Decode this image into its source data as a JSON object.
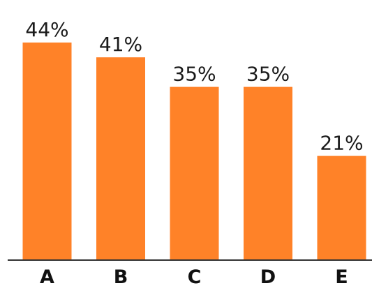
{
  "chart_data": {
    "type": "bar",
    "categories": [
      "A",
      "B",
      "C",
      "D",
      "E"
    ],
    "values": [
      44,
      41,
      35,
      35,
      21
    ],
    "value_labels": [
      "44%",
      "41%",
      "35%",
      "35%",
      "21%"
    ],
    "title": "",
    "xlabel": "",
    "ylabel": "",
    "ylim": [
      0,
      50
    ],
    "grid": false,
    "legend": "none",
    "colors": {
      "bar": "#FF8228",
      "axis": "#333333",
      "text": "#1a1a1a"
    }
  }
}
